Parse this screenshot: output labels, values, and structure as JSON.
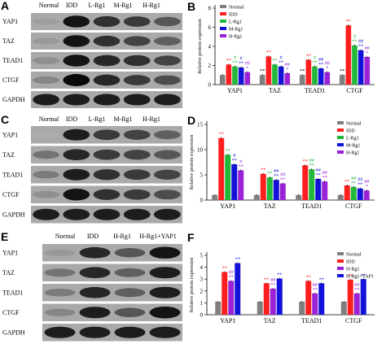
{
  "colors": {
    "Normal": "#7f7f7f",
    "IDD": "#ff1f1f",
    "L-Rg1": "#22b83a",
    "M-Rg1": "#1212d8",
    "H-Rg1": "#9a22d6",
    "H-Rg1+YAP1": "#1212d8"
  },
  "blots": [
    {
      "letter": "A",
      "groups": [
        "Normal",
        "IDD",
        "L-Rg1",
        "M-Rg1",
        "H-Rg1"
      ],
      "rows": [
        "YAP1",
        "TAZ",
        "TEAD1",
        "CTGF",
        "GAPDH"
      ],
      "intensity": [
        [
          0.22,
          0.95,
          0.8,
          0.75,
          0.6
        ],
        [
          0.25,
          0.95,
          0.8,
          0.7,
          0.55
        ],
        [
          0.3,
          0.95,
          0.85,
          0.8,
          0.7
        ],
        [
          0.35,
          1.0,
          0.85,
          0.75,
          0.65
        ],
        [
          0.9,
          0.9,
          0.9,
          0.9,
          0.9
        ]
      ]
    },
    {
      "letter": "C",
      "groups": [
        "Normal",
        "IDD",
        "L-Rg1",
        "M-Rg1",
        "H-Rg1"
      ],
      "rows": [
        "YAP1",
        "TAZ",
        "TEAD1",
        "CTGF",
        "GAPDH"
      ],
      "intensity": [
        [
          0.15,
          0.9,
          0.75,
          0.7,
          0.55
        ],
        [
          0.45,
          0.85,
          0.75,
          0.7,
          0.6
        ],
        [
          0.4,
          0.9,
          0.8,
          0.75,
          0.7
        ],
        [
          0.3,
          0.95,
          0.8,
          0.75,
          0.65
        ],
        [
          0.9,
          0.9,
          0.9,
          0.9,
          0.9
        ]
      ]
    },
    {
      "letter": "E",
      "groups": [
        "Normal",
        "IDD",
        "H-Rg1",
        "H-Rg1+YAP1"
      ],
      "rows": [
        "YAP1",
        "TAZ",
        "TEAD1",
        "CTGF",
        "GAPDH"
      ],
      "intensity": [
        [
          0.25,
          0.85,
          0.6,
          0.95
        ],
        [
          0.45,
          0.85,
          0.55,
          0.9
        ],
        [
          0.4,
          0.85,
          0.55,
          0.9
        ],
        [
          0.35,
          0.9,
          0.6,
          0.95
        ],
        [
          0.9,
          0.9,
          0.9,
          0.9
        ]
      ]
    }
  ],
  "chart_data": [
    {
      "letter": "B",
      "type": "bar",
      "ylabel": "Relative protein expression",
      "ylim": [
        0,
        8
      ],
      "yticks": [
        0,
        2,
        4,
        6,
        8
      ],
      "categories": [
        "YAP1",
        "TAZ",
        "TEAD1",
        "CTGF"
      ],
      "legend_position": "top-left",
      "series": [
        {
          "name": "Normal",
          "values": [
            1.0,
            1.0,
            1.0,
            1.0
          ]
        },
        {
          "name": "IDD",
          "values": [
            2.1,
            2.95,
            2.6,
            6.2
          ]
        },
        {
          "name": "L-Rg1",
          "values": [
            1.9,
            2.1,
            1.9,
            4.1
          ]
        },
        {
          "name": "M-Rg1",
          "values": [
            1.8,
            1.9,
            1.7,
            3.6
          ]
        },
        {
          "name": "H-Rg1",
          "values": [
            1.3,
            1.2,
            1.3,
            2.9
          ]
        }
      ],
      "significance": [
        [
          "",
          "**",
          "**",
          "**"
        ],
        [
          "**",
          "**",
          "**",
          "**"
        ],
        [
          "#\n**",
          "**",
          "#\n**",
          "#\n**"
        ],
        [
          "#\n**",
          "#\n**",
          "##\n**",
          "##\n**"
        ],
        [
          "##\n*",
          "##\n*",
          "##\n*",
          "##\n*"
        ]
      ]
    },
    {
      "letter": "D",
      "type": "bar",
      "ylabel": "Relative protein expression",
      "ylim": [
        0,
        15
      ],
      "yticks": [
        0,
        5,
        10,
        15
      ],
      "categories": [
        "YAP1",
        "TAZ",
        "TEAD1",
        "CTGF"
      ],
      "legend_position": "top-right",
      "series": [
        {
          "name": "Normal",
          "values": [
            1.0,
            1.0,
            1.0,
            1.0
          ]
        },
        {
          "name": "IDD",
          "values": [
            12.3,
            5.2,
            6.9,
            2.9
          ]
        },
        {
          "name": "L-Rg1",
          "values": [
            9.0,
            4.5,
            6.1,
            2.6
          ]
        },
        {
          "name": "M-Rg1",
          "values": [
            7.1,
            4.0,
            4.2,
            2.3
          ]
        },
        {
          "name": "H-Rg1",
          "values": [
            5.9,
            3.3,
            3.7,
            1.9
          ]
        }
      ],
      "significance": [
        [
          "",
          "",
          "",
          ""
        ],
        [
          "**",
          "**",
          "**",
          "**"
        ],
        [
          "**",
          "**",
          "##\n**",
          "##\n**"
        ],
        [
          "#\n**",
          "##\n**",
          "##\n**",
          "##\n**"
        ],
        [
          "#\n**",
          "##\n**",
          "##\n**",
          "##\n*"
        ]
      ]
    },
    {
      "letter": "F",
      "type": "bar",
      "ylabel": "Relative protein expression",
      "ylim": [
        0,
        5
      ],
      "yticks": [
        0,
        1,
        2,
        3,
        4,
        5
      ],
      "categories": [
        "YAP1",
        "TAZ",
        "TEAD1",
        "CTGF"
      ],
      "legend_position": "top-right",
      "series": [
        {
          "name": "Normal",
          "values": [
            1.1,
            1.1,
            1.1,
            1.1
          ]
        },
        {
          "name": "IDD",
          "values": [
            3.6,
            2.65,
            2.85,
            2.95
          ]
        },
        {
          "name": "H-Rg1",
          "values": [
            2.85,
            2.2,
            1.8,
            1.8
          ]
        },
        {
          "name": "H-Rg1+YAP1",
          "values": [
            4.35,
            3.05,
            2.65,
            3.0
          ]
        }
      ],
      "significance": [
        [
          "",
          "",
          "",
          ""
        ],
        [
          "**",
          "**",
          "**",
          "**"
        ],
        [
          "##\n**",
          "##\n**",
          "##\n**",
          "##\n**"
        ],
        [
          "**",
          "**",
          "**",
          "**"
        ]
      ]
    }
  ]
}
